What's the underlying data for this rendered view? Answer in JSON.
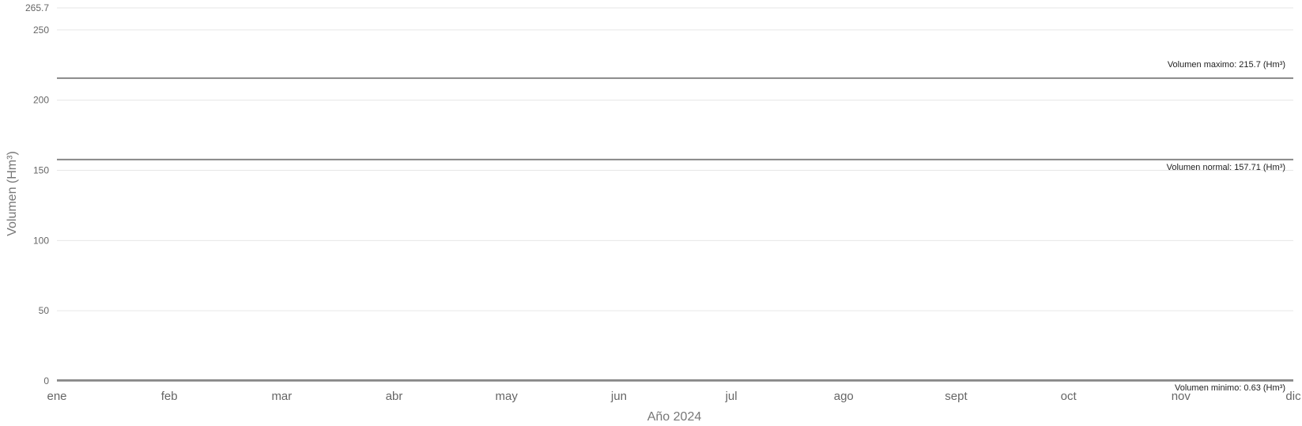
{
  "chart_data": {
    "type": "line",
    "title": "",
    "xlabel": "Año 2024",
    "ylabel": "Volumen (Hm³)",
    "categories": [
      "ene",
      "feb",
      "mar",
      "abr",
      "may",
      "jun",
      "jul",
      "ago",
      "sept",
      "oct",
      "nov",
      "dic"
    ],
    "ylim": [
      0,
      265.7
    ],
    "yticks": [
      0,
      50,
      100,
      150,
      200,
      250
    ],
    "ymax_label": "265.7",
    "grid": true,
    "series": [],
    "reference_lines": [
      {
        "value": 215.7,
        "label": "Volumen maximo: 215.7 (Hm³)",
        "label_position": "above"
      },
      {
        "value": 157.71,
        "label": "Volumen normal: 157.71 (Hm³)",
        "label_position": "below"
      },
      {
        "value": 0.63,
        "label": "Volumen minimo: 0.63 (Hm³)",
        "label_position": "below"
      }
    ],
    "colors": {
      "reference_line": "#888888",
      "grid": "#e6e6e6",
      "axis": "#888888",
      "text": "#666666"
    }
  }
}
